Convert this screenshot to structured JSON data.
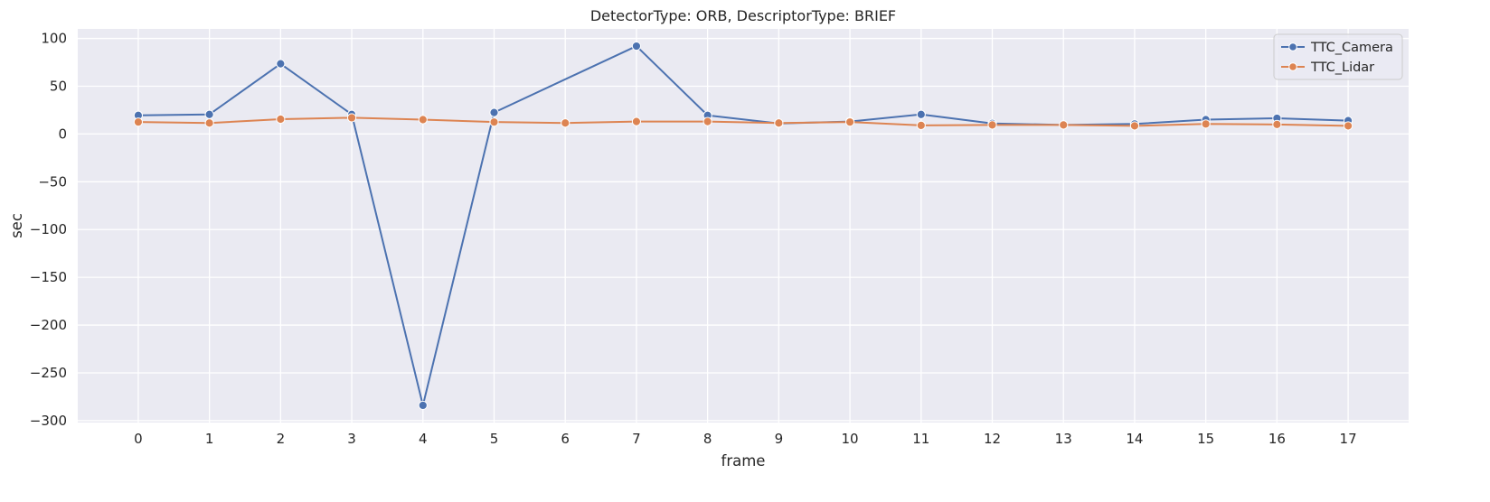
{
  "chart_data": {
    "type": "line",
    "title": "DetectorType: ORB, DescriptorType: BRIEF",
    "xlabel": "frame",
    "ylabel": "sec",
    "x": [
      0,
      1,
      2,
      3,
      4,
      5,
      6,
      7,
      8,
      9,
      10,
      11,
      12,
      13,
      14,
      15,
      16,
      17
    ],
    "xticks": [
      0,
      1,
      2,
      3,
      4,
      5,
      6,
      7,
      8,
      9,
      10,
      11,
      12,
      13,
      14,
      15,
      16,
      17
    ],
    "yticks": [
      100,
      50,
      0,
      -50,
      -100,
      -150,
      -200,
      -250,
      -300
    ],
    "ytick_labels": [
      "100",
      "50",
      "0",
      "−50",
      "−100",
      "−150",
      "−200",
      "−250",
      "−300"
    ],
    "xlim": [
      -0.85,
      17.85
    ],
    "ylim": [
      -302,
      110
    ],
    "grid": true,
    "legend_position": "top-right",
    "series": [
      {
        "name": "TTC_Camera",
        "color": "#4c72b0",
        "marker": "circle",
        "values": [
          19.5,
          20.5,
          73.5,
          20.5,
          -284,
          22.5,
          null,
          92,
          19.5,
          11,
          13,
          20.5,
          11,
          9.5,
          10.5,
          15,
          16.5,
          14
        ]
      },
      {
        "name": "TTC_Lidar",
        "color": "#dd8452",
        "marker": "circle",
        "values": [
          12.5,
          11.5,
          15.5,
          17,
          15,
          12.5,
          11.5,
          13,
          13,
          11.5,
          12.5,
          9,
          9.5,
          9.5,
          8.5,
          10.5,
          10,
          8.5
        ]
      }
    ]
  }
}
